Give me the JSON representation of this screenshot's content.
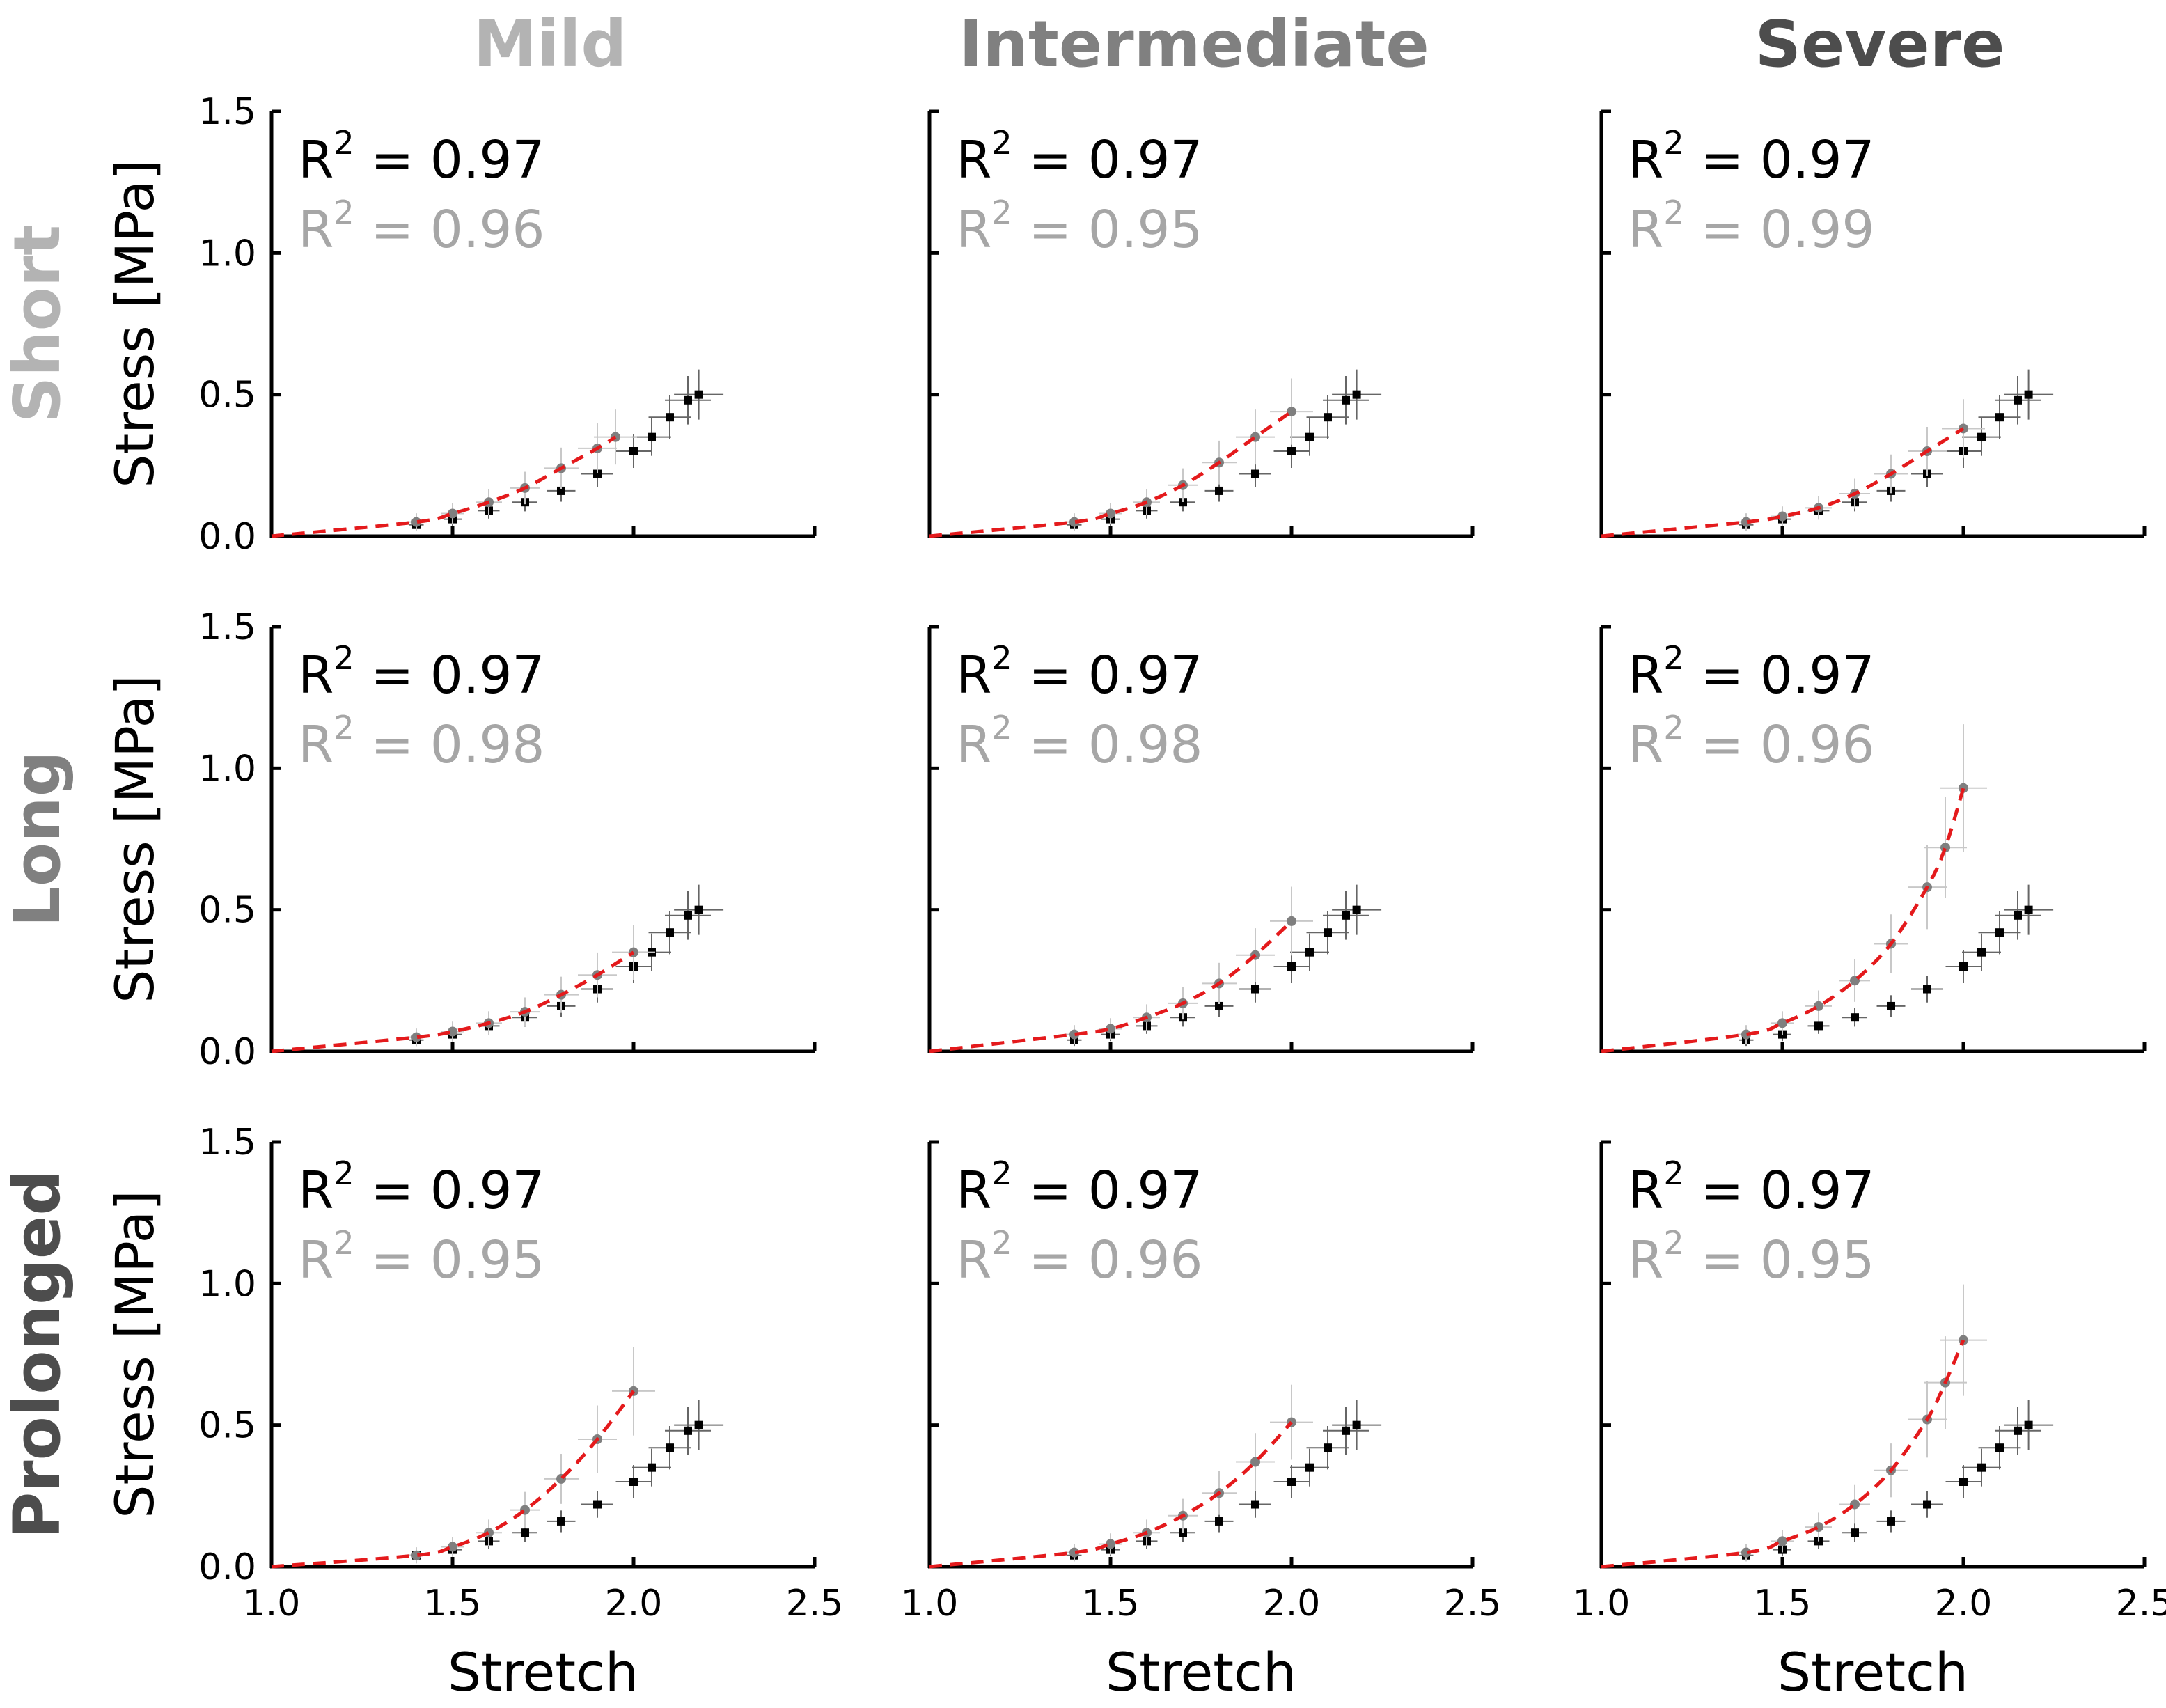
{
  "chart_data": {
    "type": "grid",
    "column_titles": [
      "Mild",
      "Intermediate",
      "Severe"
    ],
    "row_titles": [
      "Short",
      "Long",
      "Prolonged"
    ],
    "xlabel": "Stretch",
    "ylabel": "Stress [MPa]",
    "xlim": [
      1.0,
      2.5
    ],
    "ylim": [
      0.0,
      1.5
    ],
    "xticks": [
      "1.0",
      "1.5",
      "2.0",
      "2.5"
    ],
    "yticks": [
      "0.0",
      "0.5",
      "1.0",
      "1.5"
    ],
    "r2_prefix": "R",
    "r2_exponent": "2",
    "colors": {
      "col_titles": [
        "#b3b3b3",
        "#808080",
        "#4d4d4d"
      ],
      "row_titles": [
        "#b3b3b3",
        "#808080",
        "#4d4d4d"
      ],
      "reference": "#000000",
      "condition": "#a6a6a6",
      "fit": "#e41a1c",
      "errorbar": "#c8c8c8",
      "axis": "#000000"
    },
    "reference_series": {
      "name": "reference",
      "x": [
        1.0,
        1.4,
        1.5,
        1.6,
        1.7,
        1.8,
        1.9,
        2.0,
        2.05,
        2.1,
        2.15,
        2.18
      ],
      "y": [
        0.0,
        0.04,
        0.06,
        0.09,
        0.12,
        0.16,
        0.22,
        0.3,
        0.35,
        0.42,
        0.48,
        0.5
      ]
    },
    "panels": [
      {
        "row": "Short",
        "col": "Mild",
        "r2_reference": "0.97",
        "r2_condition": "0.96",
        "condition_x": [
          1.0,
          1.4,
          1.5,
          1.6,
          1.7,
          1.8,
          1.9,
          1.95
        ],
        "condition_y": [
          0.0,
          0.05,
          0.08,
          0.12,
          0.17,
          0.24,
          0.31,
          0.35
        ]
      },
      {
        "row": "Short",
        "col": "Intermediate",
        "r2_reference": "0.97",
        "r2_condition": "0.95",
        "condition_x": [
          1.0,
          1.4,
          1.5,
          1.6,
          1.7,
          1.8,
          1.9,
          2.0
        ],
        "condition_y": [
          0.0,
          0.05,
          0.08,
          0.12,
          0.18,
          0.26,
          0.35,
          0.44
        ]
      },
      {
        "row": "Short",
        "col": "Severe",
        "r2_reference": "0.97",
        "r2_condition": "0.99",
        "condition_x": [
          1.0,
          1.4,
          1.5,
          1.6,
          1.7,
          1.8,
          1.9,
          2.0
        ],
        "condition_y": [
          0.0,
          0.05,
          0.07,
          0.1,
          0.15,
          0.22,
          0.3,
          0.38
        ]
      },
      {
        "row": "Long",
        "col": "Mild",
        "r2_reference": "0.97",
        "r2_condition": "0.98",
        "condition_x": [
          1.0,
          1.4,
          1.5,
          1.6,
          1.7,
          1.8,
          1.9,
          2.0
        ],
        "condition_y": [
          0.0,
          0.05,
          0.07,
          0.1,
          0.14,
          0.2,
          0.27,
          0.35
        ]
      },
      {
        "row": "Long",
        "col": "Intermediate",
        "r2_reference": "0.97",
        "r2_condition": "0.98",
        "condition_x": [
          1.0,
          1.4,
          1.5,
          1.6,
          1.7,
          1.8,
          1.9,
          2.0
        ],
        "condition_y": [
          0.0,
          0.06,
          0.08,
          0.12,
          0.17,
          0.24,
          0.34,
          0.46
        ]
      },
      {
        "row": "Long",
        "col": "Severe",
        "r2_reference": "0.97",
        "r2_condition": "0.96",
        "condition_x": [
          1.0,
          1.4,
          1.5,
          1.6,
          1.7,
          1.8,
          1.9,
          1.95,
          2.0
        ],
        "condition_y": [
          0.0,
          0.06,
          0.1,
          0.16,
          0.25,
          0.38,
          0.58,
          0.72,
          0.93
        ]
      },
      {
        "row": "Prolonged",
        "col": "Mild",
        "r2_reference": "0.97",
        "r2_condition": "0.95",
        "condition_x": [
          1.0,
          1.4,
          1.5,
          1.6,
          1.7,
          1.8,
          1.9,
          2.0
        ],
        "condition_y": [
          0.0,
          0.04,
          0.07,
          0.12,
          0.2,
          0.31,
          0.45,
          0.62
        ]
      },
      {
        "row": "Prolonged",
        "col": "Intermediate",
        "r2_reference": "0.97",
        "r2_condition": "0.96",
        "condition_x": [
          1.0,
          1.4,
          1.5,
          1.6,
          1.7,
          1.8,
          1.9,
          2.0
        ],
        "condition_y": [
          0.0,
          0.05,
          0.08,
          0.12,
          0.18,
          0.26,
          0.37,
          0.51
        ]
      },
      {
        "row": "Prolonged",
        "col": "Severe",
        "r2_reference": "0.97",
        "r2_condition": "0.95",
        "condition_x": [
          1.0,
          1.4,
          1.5,
          1.6,
          1.7,
          1.8,
          1.9,
          1.95,
          2.0
        ],
        "condition_y": [
          0.0,
          0.05,
          0.09,
          0.14,
          0.22,
          0.34,
          0.52,
          0.65,
          0.8
        ]
      }
    ]
  }
}
